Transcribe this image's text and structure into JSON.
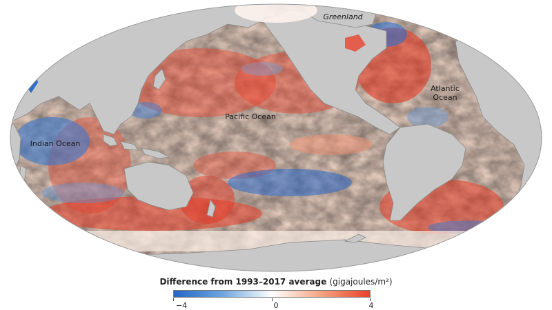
{
  "labels": {
    "greenland": "Greenland",
    "atlantic_line1": "Atlantic",
    "atlantic_line2": "Ocean",
    "pacific": "Pacific Ocean",
    "indian": "Indian Ocean"
  },
  "legend": {
    "title": "Difference from 1993–2017 average",
    "unit": "(gigajoules/m²)",
    "min_label": "−4",
    "mid_label": "0",
    "max_label": "4",
    "scale_min": -4,
    "scale_max": 4,
    "colors": [
      "#2166c4",
      "#6ea6e0",
      "#ffffff",
      "#f4a582",
      "#e8402a"
    ]
  },
  "colors": {
    "land": "#c8c8c8",
    "land_border": "#8a8a8a",
    "warm": "#e8452e",
    "cool": "#2c6ccc",
    "neutral_warm": "#f6d3c0"
  }
}
